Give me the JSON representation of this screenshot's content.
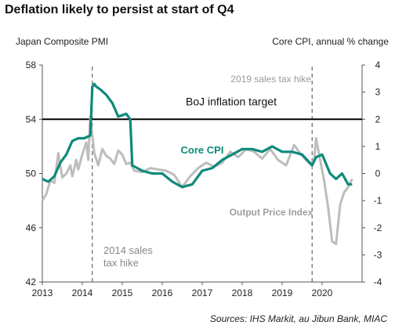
{
  "chart_data": {
    "type": "line",
    "title": "Deflation likely to persist at start of Q4",
    "ylabel_left": "Japan Composite PMI",
    "ylabel_right": "Core CPI, annual % change",
    "source": "Sources: IHS Markit, au Jibun Bank, MIAC",
    "ylim_left": [
      42,
      58
    ],
    "ylim_right": [
      -4,
      4
    ],
    "yticks_left": [
      42,
      46,
      50,
      54,
      58
    ],
    "yticks_right": [
      -4,
      -3,
      -2,
      -1,
      0,
      1,
      2,
      3,
      4
    ],
    "xlim": [
      2013,
      2021
    ],
    "xticks": [
      2013,
      2014,
      2015,
      2016,
      2017,
      2018,
      2019,
      2020
    ],
    "xtick_labels": [
      "2013",
      "2014",
      "2015",
      "2016",
      "2017",
      "2018",
      "2019",
      "2020"
    ],
    "grid": false,
    "series": [
      {
        "name": "Core CPI",
        "axis": "right",
        "color": "#0e8a7c",
        "x": [
          2013.0,
          2013.15,
          2013.3,
          2013.45,
          2013.6,
          2013.75,
          2013.9,
          2014.05,
          2014.2,
          2014.25,
          2014.3,
          2014.35,
          2014.45,
          2014.6,
          2014.75,
          2014.9,
          2015.1,
          2015.2,
          2015.25,
          2015.5,
          2015.75,
          2016.0,
          2016.25,
          2016.5,
          2016.75,
          2017.0,
          2017.25,
          2017.5,
          2017.75,
          2018.0,
          2018.25,
          2018.5,
          2018.75,
          2019.0,
          2019.25,
          2019.5,
          2019.75,
          2019.85,
          2020.0,
          2020.2,
          2020.35,
          2020.5,
          2020.65,
          2020.75
        ],
        "y": [
          -0.2,
          -0.3,
          -0.1,
          0.4,
          0.7,
          1.2,
          1.3,
          1.3,
          1.4,
          3.2,
          3.3,
          3.2,
          3.1,
          2.9,
          2.6,
          2.1,
          2.2,
          2.0,
          0.3,
          0.1,
          0.0,
          0.0,
          -0.3,
          -0.5,
          -0.4,
          0.1,
          0.2,
          0.5,
          0.7,
          0.9,
          0.9,
          0.8,
          1.0,
          0.8,
          0.8,
          0.7,
          0.3,
          0.6,
          0.7,
          0.0,
          -0.2,
          0.0,
          -0.4,
          -0.4
        ]
      },
      {
        "name": "Output Price Index",
        "axis": "left",
        "color": "#bdbdbd",
        "x": [
          2013.0,
          2013.1,
          2013.2,
          2013.3,
          2013.4,
          2013.45,
          2013.5,
          2013.6,
          2013.7,
          2013.75,
          2013.85,
          2013.9,
          2014.0,
          2014.1,
          2014.15,
          2014.2,
          2014.3,
          2014.4,
          2014.5,
          2014.6,
          2014.7,
          2014.8,
          2014.9,
          2015.0,
          2015.1,
          2015.2,
          2015.3,
          2015.5,
          2015.7,
          2015.9,
          2016.1,
          2016.3,
          2016.5,
          2016.7,
          2016.9,
          2017.1,
          2017.3,
          2017.5,
          2017.7,
          2017.9,
          2018.1,
          2018.3,
          2018.5,
          2018.7,
          2018.9,
          2019.1,
          2019.3,
          2019.5,
          2019.7,
          2019.8,
          2019.85,
          2019.95,
          2020.05,
          2020.15,
          2020.25,
          2020.35,
          2020.45,
          2020.55,
          2020.65,
          2020.75
        ],
        "y": [
          48.0,
          48.5,
          49.5,
          49.3,
          51.5,
          50.6,
          49.7,
          50.0,
          50.6,
          49.8,
          51.0,
          50.3,
          51.4,
          52.3,
          51.0,
          54.2,
          51.5,
          50.6,
          51.8,
          51.3,
          51.1,
          50.7,
          51.7,
          51.4,
          50.7,
          50.8,
          50.2,
          50.1,
          50.4,
          50.3,
          50.2,
          49.9,
          49.0,
          49.8,
          50.4,
          50.8,
          50.5,
          50.8,
          51.6,
          51.2,
          51.8,
          51.6,
          51.1,
          51.8,
          51.0,
          50.6,
          52.1,
          51.3,
          50.7,
          51.0,
          52.6,
          51.0,
          49.5,
          47.5,
          45.0,
          44.8,
          47.7,
          48.6,
          49.0,
          49.6
        ]
      }
    ],
    "reference_line": {
      "label": "BoJ inflation target",
      "axis": "right",
      "value": 2
    },
    "annotations": [
      {
        "x": 2014.25,
        "label": "2014 sales\ntax hike"
      },
      {
        "x": 2019.75,
        "label": "2019 sales tax hike"
      }
    ],
    "series_labels": [
      "Core CPI",
      "Output Price Index"
    ]
  }
}
